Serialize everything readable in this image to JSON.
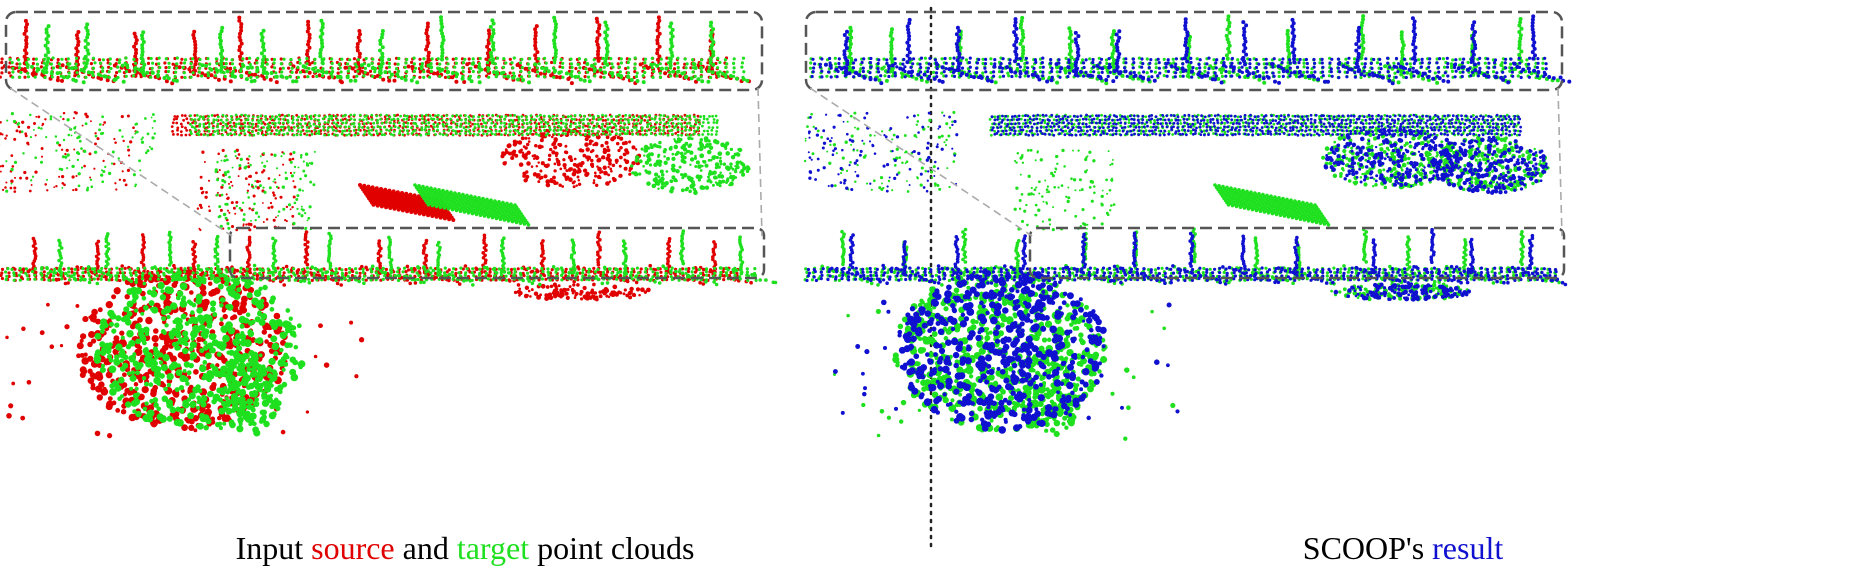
{
  "colors": {
    "source": "#e00000",
    "target": "#1ee01e",
    "result": "#1010d0",
    "frame": "#555555",
    "leader": "#aaaaaa",
    "divider": "#222222"
  },
  "left_panel": {
    "caption": {
      "prefix": "Input ",
      "source_word": "source",
      "middle": " and ",
      "target_word": "target",
      "suffix": " point clouds"
    }
  },
  "right_panel": {
    "caption": {
      "prefix": "SCOOP's ",
      "result_word": "result"
    }
  }
}
